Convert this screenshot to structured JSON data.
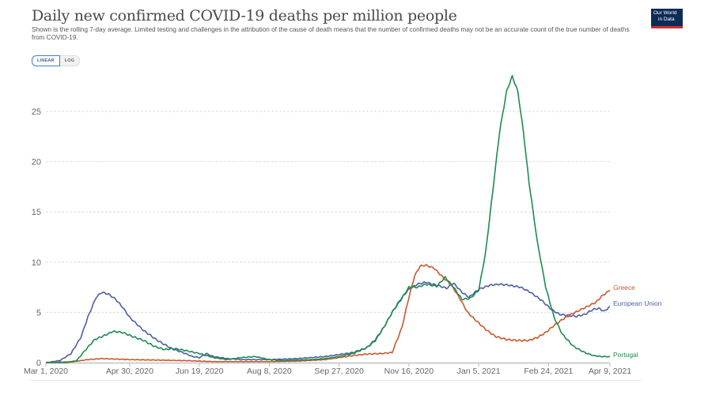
{
  "header": {
    "title": "Daily new confirmed COVID-19 deaths per million people",
    "subtitle": "Shown is the rolling 7-day average. Limited testing and challenges in the attribution of the cause of death means that the number of confirmed deaths may not be an accurate count of the true number of deaths from COVID-19.",
    "logo_line1": "Our World",
    "logo_line2": "in Data"
  },
  "scale_toggle": {
    "linear_label": "LINEAR",
    "log_label": "LOG",
    "selected": "LINEAR"
  },
  "chart_data": {
    "type": "line",
    "title": "Daily new confirmed COVID-19 deaths per million people",
    "xlabel": "",
    "ylabel": "",
    "ylim": [
      0,
      28.5
    ],
    "grid": true,
    "legend": "inline-right",
    "y_ticks": [
      "0",
      "5",
      "10",
      "15",
      "20",
      "25"
    ],
    "y_tick_values": [
      0,
      5,
      10,
      15,
      20,
      25
    ],
    "x_ticks": [
      "Mar 1, 2020",
      "Apr 30, 2020",
      "Jun 19, 2020",
      "Aug 8, 2020",
      "Sep 27, 2020",
      "Nov 16, 2020",
      "Jan 5, 2021",
      "Feb 24, 2021",
      "Apr 9, 2021"
    ],
    "x_tick_days": [
      0,
      60,
      110,
      160,
      210,
      260,
      310,
      360,
      404
    ],
    "x_range_days": [
      0,
      404
    ],
    "series": [
      {
        "name": "European Union",
        "color": "#4c5fa3",
        "days": [
          0,
          10,
          18,
          25,
          30,
          36,
          40,
          45,
          50,
          55,
          60,
          70,
          80,
          90,
          100,
          105,
          110,
          115,
          120,
          130,
          140,
          150,
          160,
          170,
          180,
          190,
          200,
          210,
          220,
          230,
          236,
          242,
          248,
          254,
          260,
          266,
          272,
          280,
          287,
          292,
          298,
          303,
          310,
          318,
          325,
          332,
          340,
          347,
          355,
          362,
          368,
          374,
          380,
          386,
          392,
          396,
          400,
          404
        ],
        "values": [
          0.0,
          0.2,
          0.9,
          2.5,
          4.5,
          6.5,
          7.0,
          6.8,
          6.3,
          5.5,
          4.5,
          3.2,
          2.2,
          1.4,
          0.9,
          0.6,
          0.5,
          0.9,
          0.6,
          0.4,
          0.3,
          0.3,
          0.3,
          0.35,
          0.4,
          0.5,
          0.6,
          0.8,
          1.0,
          1.5,
          2.3,
          3.5,
          5.0,
          6.3,
          7.3,
          7.8,
          8.0,
          7.7,
          7.4,
          7.9,
          7.0,
          6.5,
          7.3,
          7.7,
          7.8,
          7.7,
          7.5,
          7.0,
          6.2,
          5.3,
          4.8,
          4.7,
          4.6,
          4.8,
          5.3,
          5.4,
          5.1,
          5.6
        ]
      },
      {
        "name": "Greece",
        "color": "#c8582a",
        "days": [
          0,
          20,
          30,
          40,
          50,
          60,
          80,
          100,
          120,
          140,
          160,
          180,
          200,
          210,
          220,
          230,
          240,
          248,
          255,
          260,
          264,
          268,
          272,
          278,
          285,
          290,
          296,
          302,
          308,
          315,
          322,
          330,
          338,
          346,
          352,
          358,
          364,
          370,
          376,
          382,
          388,
          394,
          398,
          404
        ],
        "values": [
          0.0,
          0.1,
          0.3,
          0.4,
          0.35,
          0.3,
          0.25,
          0.2,
          0.1,
          0.1,
          0.1,
          0.15,
          0.3,
          0.5,
          0.7,
          0.85,
          0.9,
          1.0,
          3.5,
          6.5,
          8.6,
          9.6,
          9.7,
          9.4,
          8.4,
          7.8,
          6.5,
          5.0,
          4.2,
          3.3,
          2.6,
          2.3,
          2.2,
          2.2,
          2.5,
          3.0,
          3.7,
          4.3,
          4.8,
          5.2,
          5.6,
          6.0,
          6.6,
          7.2
        ]
      },
      {
        "name": "Portugal",
        "color": "#1d8c4e",
        "days": [
          0,
          15,
          22,
          28,
          35,
          42,
          48,
          55,
          62,
          70,
          78,
          85,
          92,
          100,
          110,
          120,
          130,
          140,
          150,
          160,
          170,
          180,
          190,
          200,
          210,
          220,
          230,
          236,
          242,
          248,
          254,
          260,
          266,
          272,
          280,
          286,
          292,
          298,
          304,
          310,
          315,
          320,
          325,
          330,
          334,
          338,
          342,
          346,
          352,
          358,
          364,
          370,
          378,
          386,
          392,
          398,
          404
        ],
        "values": [
          0.0,
          0.0,
          0.2,
          1.2,
          2.3,
          2.7,
          3.1,
          3.0,
          2.6,
          2.2,
          1.6,
          1.3,
          1.4,
          1.2,
          0.9,
          0.5,
          0.3,
          0.5,
          0.6,
          0.3,
          0.2,
          0.25,
          0.3,
          0.4,
          0.6,
          0.9,
          1.5,
          2.2,
          3.5,
          5.0,
          6.2,
          7.5,
          7.5,
          7.8,
          7.6,
          8.5,
          7.5,
          6.3,
          6.4,
          7.2,
          11.0,
          17.0,
          23.0,
          27.0,
          28.5,
          27.0,
          23.0,
          18.0,
          12.0,
          7.5,
          4.5,
          2.8,
          1.6,
          1.0,
          0.7,
          0.6,
          0.6
        ]
      }
    ]
  }
}
